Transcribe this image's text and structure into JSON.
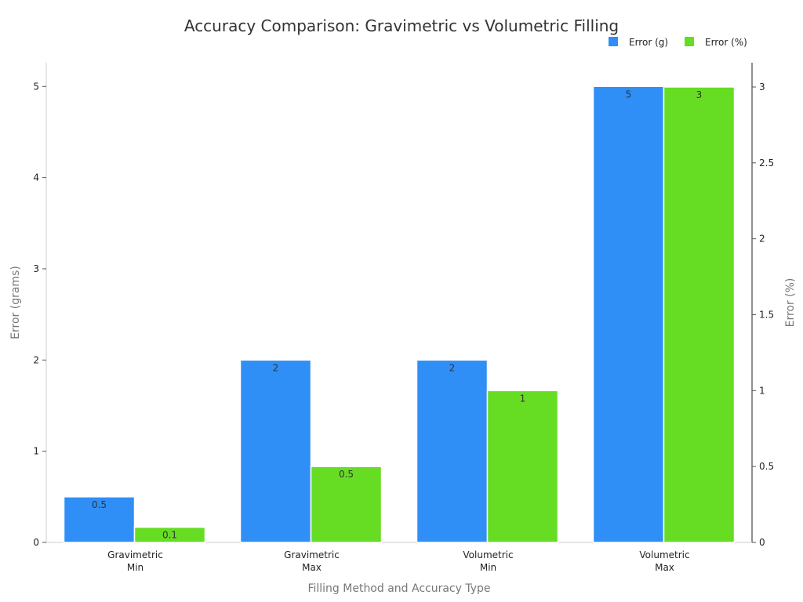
{
  "colors": {
    "series_g": "#2f8ff7",
    "series_pct": "#66dd22",
    "axis": "#cccccc"
  },
  "chart_data": {
    "type": "bar",
    "title": "Accuracy Comparison: Gravimetric vs Volumetric Filling",
    "xlabel": "Filling Method and Accuracy Type",
    "ylabel_left": "Error (grams)",
    "ylabel_right": "Error (%)",
    "categories": [
      [
        "Gravimetric",
        "Min"
      ],
      [
        "Gravimetric",
        "Max"
      ],
      [
        "Volumetric",
        "Min"
      ],
      [
        "Volumetric",
        "Max"
      ]
    ],
    "series": [
      {
        "name": "Error (g)",
        "axis": "left",
        "values": [
          0.5,
          2,
          2,
          5
        ],
        "labels": [
          "0.5",
          "2",
          "2",
          "5"
        ]
      },
      {
        "name": "Error (%)",
        "axis": "right",
        "values": [
          0.1,
          0.5,
          1,
          3
        ],
        "labels": [
          "0.1",
          "0.5",
          "1",
          "3"
        ]
      }
    ],
    "ylim_left": [
      0,
      5.26
    ],
    "ylim_right": [
      0,
      3.16
    ],
    "yticks_left": [
      "0",
      "1",
      "2",
      "3",
      "4",
      "5"
    ],
    "yticks_right": [
      "0",
      "0.5",
      "1",
      "1.5",
      "2",
      "2.5",
      "3"
    ],
    "legend_position": "top-right",
    "grid": false
  }
}
